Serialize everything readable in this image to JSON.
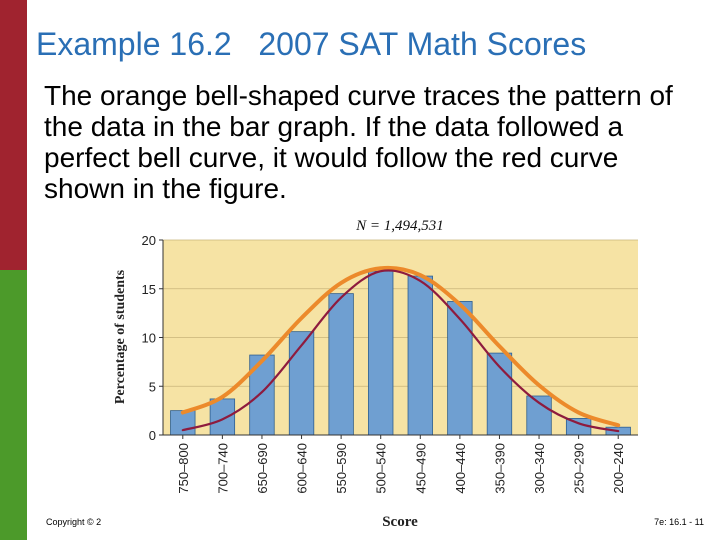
{
  "slide": {
    "title": "Example 16.2   2007 SAT Math Scores",
    "body": "The orange bell-shaped curve traces the pattern of the data in the bar graph. If the data followed a perfect bell curve, it would follow the red curve shown in the figure.",
    "footer_left": "Copyright © 2",
    "footer_right": "7e: 16.1 - 11"
  },
  "colors": {
    "side_top": "#a0232f",
    "side_bottom": "#4c9a2a",
    "title": "#2a6fb5",
    "plot_bg": "#f6e3a4",
    "bar": "#6f9fd1",
    "bar_edge": "#2f5f8f",
    "orange_curve": "#ec8a2b",
    "red_curve": "#8e1b3e",
    "grid": "#c9b57a"
  },
  "chart_data": {
    "type": "bar",
    "annotation": "N = 1,494,531",
    "xlabel": "Score",
    "ylabel": "Percentage of students",
    "ylim": [
      0,
      20
    ],
    "yticks": [
      0,
      5,
      10,
      15,
      20
    ],
    "grid": true,
    "categories": [
      "750–800",
      "700–740",
      "650–690",
      "600–640",
      "550–590",
      "500–540",
      "450–490",
      "400–440",
      "350–390",
      "300–340",
      "250–290",
      "200–240"
    ],
    "values": [
      2.5,
      3.7,
      8.2,
      10.6,
      14.5,
      16.8,
      16.3,
      13.7,
      8.4,
      4.0,
      1.7,
      0.8
    ],
    "series": [
      {
        "values": [
          2.3,
          3.9,
          7.6,
          12.0,
          15.6,
          17.1,
          16.4,
          13.4,
          9.1,
          5.1,
          2.3,
          1.0
        ]
      },
      {
        "values": [
          0.5,
          1.6,
          4.4,
          9.2,
          14.1,
          16.8,
          15.8,
          11.9,
          7.0,
          3.3,
          1.2,
          0.4
        ]
      }
    ]
  }
}
